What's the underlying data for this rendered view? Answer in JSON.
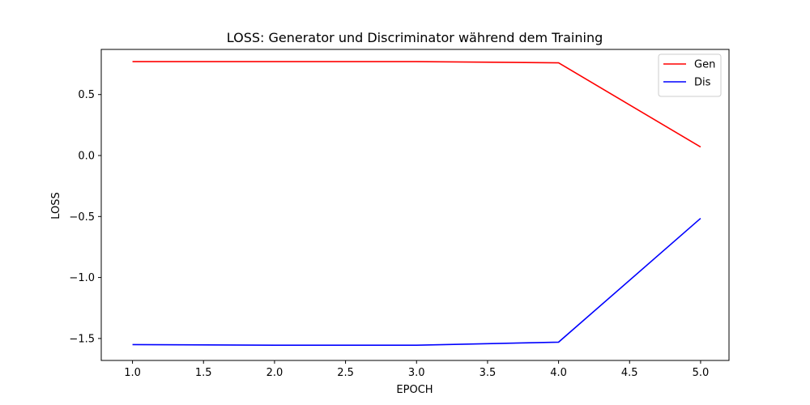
{
  "chart_data": {
    "type": "line",
    "title": "LOSS: Generator und Discriminator während dem Training",
    "xlabel": "EPOCH",
    "ylabel": "LOSS",
    "x": [
      1,
      2,
      3,
      4,
      5
    ],
    "xlim": [
      0.78,
      5.2
    ],
    "ylim": [
      -1.68,
      0.87
    ],
    "xticks": [
      "1.0",
      "1.5",
      "2.0",
      "2.5",
      "3.0",
      "3.5",
      "4.0",
      "4.5",
      "5.0"
    ],
    "xtick_values": [
      1.0,
      1.5,
      2.0,
      2.5,
      3.0,
      3.5,
      4.0,
      4.5,
      5.0
    ],
    "yticks": [
      "−1.5",
      "−1.0",
      "−0.5",
      "0.0",
      "0.5"
    ],
    "ytick_values": [
      -1.5,
      -1.0,
      -0.5,
      0.0,
      0.5
    ],
    "grid": false,
    "legend_position": "top-right",
    "series": [
      {
        "name": "Gen",
        "color": "#ff0000",
        "values": [
          0.77,
          0.77,
          0.77,
          0.76,
          0.07
        ]
      },
      {
        "name": "Dis",
        "color": "#0000ff",
        "values": [
          -1.55,
          -1.555,
          -1.555,
          -1.53,
          -0.515
        ]
      }
    ]
  }
}
